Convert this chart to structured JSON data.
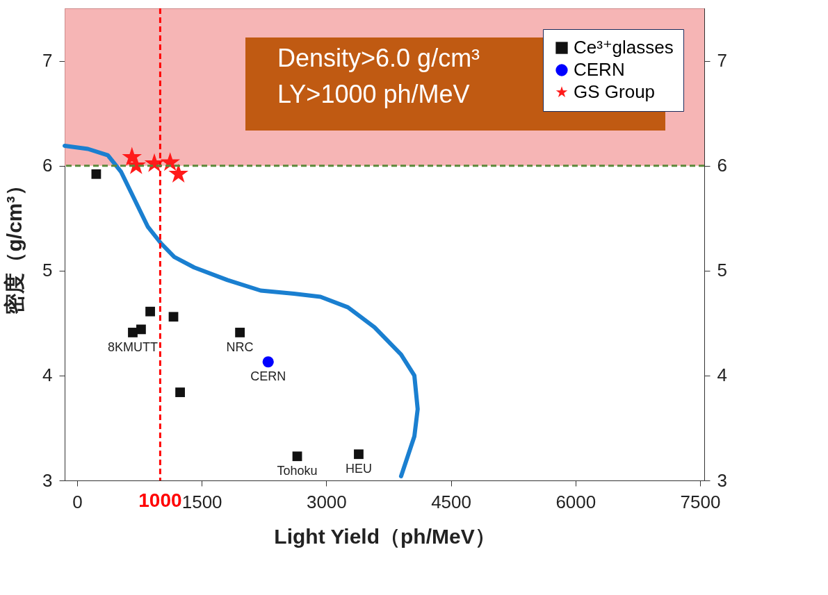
{
  "chart_data": {
    "type": "scatter",
    "xlabel": "Light Yield（ph/MeV）",
    "ylabel": "密度（g/cm³）",
    "xlim": [
      -150,
      7550
    ],
    "xticks": [
      0,
      1500,
      3000,
      4500,
      6000,
      7500
    ],
    "ylim": [
      3,
      7.5
    ],
    "yticks": [
      3,
      4,
      5,
      6,
      7
    ],
    "y2lim": [
      3,
      7.5
    ],
    "y2ticks": [
      3,
      4,
      5,
      6,
      7
    ],
    "grid": false,
    "legend": "top right",
    "series": [
      {
        "type": "line",
        "color": "#1a7fd0",
        "x": [
          -150,
          130,
          370,
          530,
          690,
          850,
          1010,
          1170,
          1410,
          1810,
          2210,
          2610,
          2930,
          3260,
          3580,
          3900,
          4060,
          4100,
          4060,
          3980,
          3900
        ],
        "values": [
          6.19,
          6.16,
          6.1,
          5.94,
          5.68,
          5.42,
          5.26,
          5.13,
          5.03,
          4.91,
          4.81,
          4.78,
          4.75,
          4.65,
          4.46,
          4.2,
          4.0,
          3.68,
          3.42,
          3.23,
          3.04
        ],
        "line_style": "solid",
        "marker": "none"
      },
      {
        "name": "Ce³⁺glasses",
        "color": "#111111",
        "marker": "square",
        "x": [
          230,
          670,
          770,
          880,
          1160,
          1960,
          1240,
          2650,
          3390
        ],
        "values": [
          5.92,
          4.41,
          4.44,
          4.61,
          4.56,
          4.41,
          3.84,
          3.23,
          3.25
        ]
      },
      {
        "name": "CERN",
        "color": "#0000ff",
        "marker": "circle",
        "x": [
          2300
        ],
        "values": [
          4.13
        ]
      },
      {
        "name": "GS Group",
        "color": "#ff1a1a",
        "marker": "star",
        "x": [
          660,
          710,
          930,
          1120,
          1220
        ],
        "values": [
          6.08,
          6.0,
          6.02,
          6.03,
          5.92
        ]
      }
    ],
    "ref_lines": [
      {
        "axis": "x",
        "value": 1000,
        "label": "1000",
        "color": "#ff0000",
        "line_style": "dashed"
      },
      {
        "axis": "y",
        "value": 6,
        "label": null,
        "color": "#5a8a3a",
        "line_style": "dashed"
      }
    ],
    "bands": [
      {
        "axis": "y",
        "from": 6,
        "to": 7.5,
        "color": "#f4a3a3"
      }
    ],
    "annotations": [
      "Density>6.0 g/cm³\nLY>1000 ph/MeV",
      {
        "text": "8KMUTT",
        "x": 670,
        "y": 4.41
      },
      {
        "text": "NRC",
        "x": 1960,
        "y": 4.41
      },
      {
        "text": "CERN",
        "x": 2300,
        "y": 4.13
      },
      {
        "text": "Tohoku",
        "x": 2650,
        "y": 3.23
      },
      {
        "text": "HEU",
        "x": 3390,
        "y": 3.25
      }
    ]
  }
}
